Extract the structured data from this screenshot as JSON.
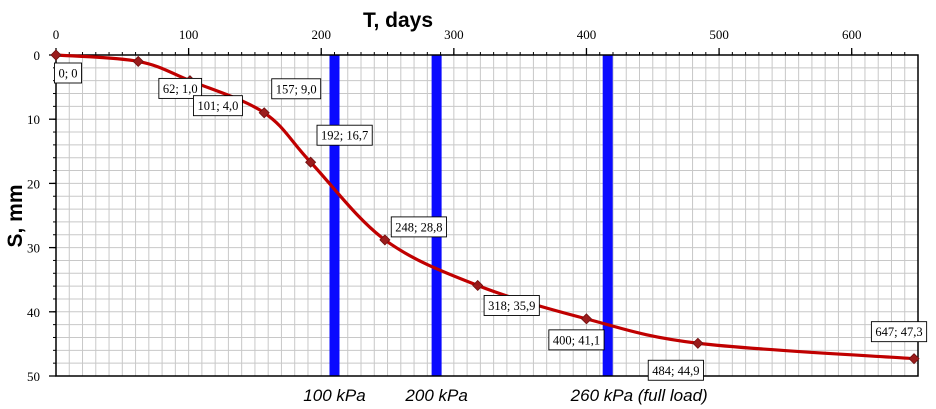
{
  "chart_data": {
    "type": "line",
    "xlabel": "T, days",
    "ylabel": "S, mm",
    "xlim": [
      0,
      650
    ],
    "ylim": [
      0,
      50
    ],
    "y_inverted": true,
    "x_axis_position": "top",
    "x_major_ticks": [
      0,
      100,
      200,
      300,
      400,
      500,
      600
    ],
    "y_major_ticks": [
      0,
      10,
      20,
      30,
      40,
      50
    ],
    "grid": true,
    "series": [
      {
        "color": "#c00000",
        "points": [
          {
            "x": 0,
            "y": 0,
            "label": "0; 0"
          },
          {
            "x": 62,
            "y": 1.0,
            "label": "62; 1,0"
          },
          {
            "x": 101,
            "y": 4.0,
            "label": "101; 4,0"
          },
          {
            "x": 157,
            "y": 9.0,
            "label": "157; 9,0"
          },
          {
            "x": 192,
            "y": 16.7,
            "label": "192; 16,7"
          },
          {
            "x": 248,
            "y": 28.8,
            "label": "248; 28,8"
          },
          {
            "x": 318,
            "y": 35.9,
            "label": "318; 35,9"
          },
          {
            "x": 400,
            "y": 41.1,
            "label": "400; 41,1"
          },
          {
            "x": 484,
            "y": 44.9,
            "label": "484; 44,9"
          },
          {
            "x": 647,
            "y": 47.3,
            "label": "647; 47,3"
          }
        ]
      }
    ],
    "load_stages": [
      {
        "x": 210,
        "label": "100 kPa"
      },
      {
        "x": 287,
        "label": "200 kPa"
      },
      {
        "x": 416,
        "label": "260 kPa (full load)"
      }
    ],
    "colors": {
      "curve": "#c00000",
      "marker": "#9b1c1c",
      "stage_line": "#0a0aff",
      "grid": "#c8c8c8"
    }
  }
}
